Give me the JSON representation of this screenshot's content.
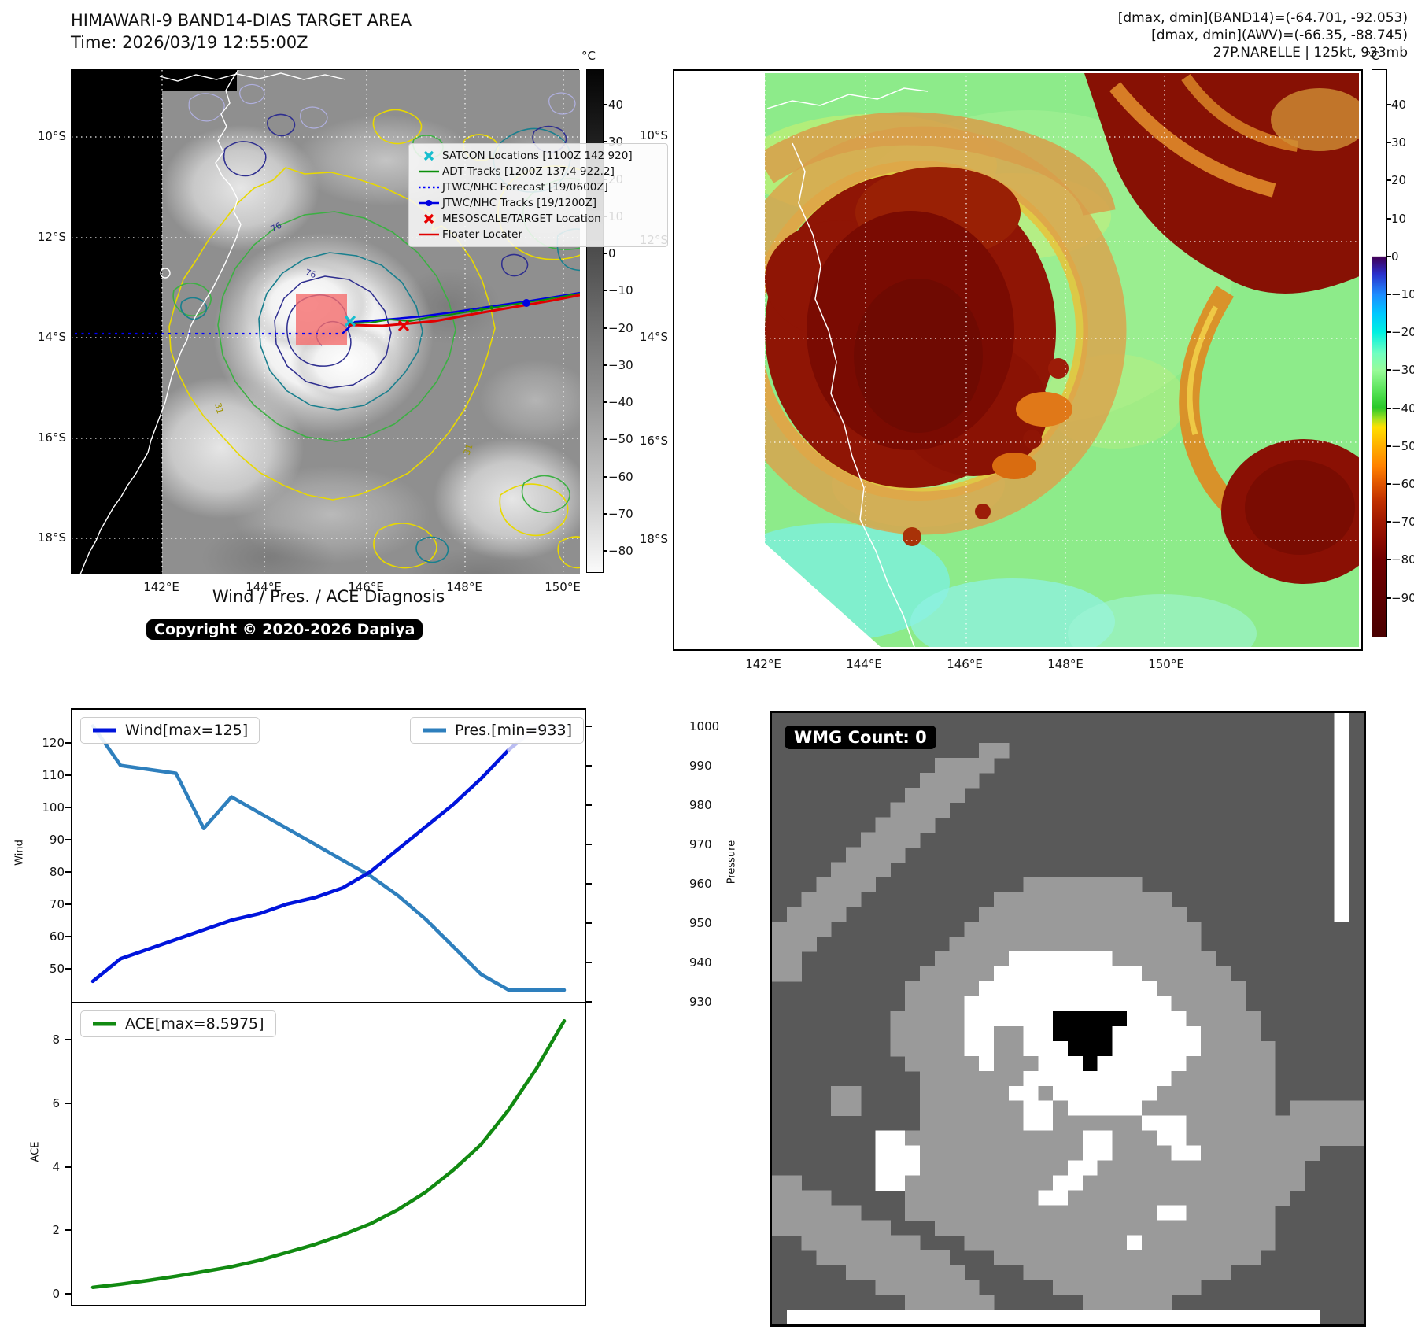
{
  "header": {
    "title": "HIMAWARI-9 BAND14-DIAS TARGET AREA",
    "time_label": "Time: 2026/03/19 12:55:00Z",
    "stats_line1": "[dmax, dmin](BAND14)=(-64.701, -92.053)",
    "stats_line2": "[dmax, dmin](AWV)=(-66.35, -88.745)",
    "stats_line3": "27P.NARELLE | 125kt, 933mb"
  },
  "map_band14": {
    "lat_ticks": [
      "10°S",
      "12°S",
      "14°S",
      "16°S",
      "18°S"
    ],
    "lon_ticks": [
      "142°E",
      "144°E",
      "146°E",
      "148°E",
      "150°E"
    ],
    "colorbar_unit": "°C",
    "colorbar_ticks": [
      "40",
      "30",
      "20",
      "10",
      "0",
      "−10",
      "−20",
      "−30",
      "−40",
      "−50",
      "−60",
      "−70",
      "−80"
    ],
    "legend": [
      {
        "marker": "satcon",
        "label": "SATCON Locations [1100Z 142 920]"
      },
      {
        "marker": "adt",
        "label": "ADT Tracks [1200Z 137.4 922.2]"
      },
      {
        "marker": "fcst",
        "label": "JTWC/NHC Forecast [19/0600Z]"
      },
      {
        "marker": "jtwc",
        "label": "JTWC/NHC Tracks [19/1200Z]"
      },
      {
        "marker": "meso",
        "label": "MESOSCALE/TARGET Location"
      },
      {
        "marker": "floater",
        "label": "Floater Locater"
      }
    ],
    "contour_labels": [
      {
        "text": "-76"
      },
      {
        "text": "76"
      },
      {
        "text": "31"
      },
      {
        "text": "31"
      }
    ],
    "copyright": "Copyright © 2020-2026 Dapiya"
  },
  "map_awv": {
    "lat_ticks": [
      "10°S",
      "12°S",
      "14°S",
      "16°S",
      "18°S"
    ],
    "lon_ticks": [
      "142°E",
      "144°E",
      "146°E",
      "148°E",
      "150°E"
    ],
    "colorbar_unit": "°C",
    "colorbar_ticks": [
      "40",
      "30",
      "20",
      "10",
      "0",
      "−10",
      "−20",
      "−30",
      "−40",
      "−50",
      "−60",
      "−70",
      "−80",
      "−90"
    ]
  },
  "diagnosis": {
    "title": "Wind / Pres. / ACE Diagnosis",
    "wind_legend": "Wind[max=125]",
    "pres_legend": "Pres.[min=933]",
    "ace_legend": "ACE[max=8.5975]"
  },
  "chart_data": [
    {
      "type": "line",
      "title": "Wind / Pres. / ACE Diagnosis",
      "x_note": "time steps, no x tick labels shown",
      "series": [
        {
          "name": "Wind[max=125]",
          "yaxis": "left",
          "color": "#0014dc",
          "tail_color": "#babdf2",
          "tail_from_index": 15,
          "values": [
            46,
            53,
            56,
            59,
            62,
            65,
            67,
            70,
            72,
            75,
            80,
            87,
            94,
            101,
            109,
            118,
            125,
            125
          ]
        },
        {
          "name": "Pres.[min=933]",
          "yaxis": "right",
          "color": "#2e7fbd",
          "values": [
            1000,
            990,
            989,
            988,
            974,
            982,
            978,
            974,
            970,
            966,
            962,
            957,
            951,
            944,
            937,
            933,
            933,
            933
          ]
        }
      ],
      "left_axis": {
        "label": "Wind",
        "ticks": [
          50,
          60,
          70,
          80,
          90,
          100,
          110,
          120
        ],
        "lim": [
          40.1,
          130.4
        ]
      },
      "right_axis": {
        "label": "Pressure",
        "ticks": [
          930,
          940,
          950,
          960,
          970,
          980,
          990,
          1000
        ],
        "lim": [
          930.4,
          1004.1
        ]
      }
    },
    {
      "type": "line",
      "series": [
        {
          "name": "ACE[max=8.5975]",
          "yaxis": "left",
          "color": "#118a11",
          "values": [
            0.2,
            0.3,
            0.42,
            0.55,
            0.7,
            0.85,
            1.05,
            1.3,
            1.55,
            1.85,
            2.2,
            2.65,
            3.2,
            3.9,
            4.7,
            5.8,
            7.1,
            8.6
          ]
        }
      ],
      "left_axis": {
        "label": "ACE",
        "ticks": [
          0,
          2,
          4,
          6,
          8
        ],
        "lim": [
          -0.35,
          9.15
        ]
      }
    }
  ],
  "wmg": {
    "count_label": "WMG Count: 0",
    "palette": {
      ".": "#595959",
      "l": "#9a9a9a",
      "w": "#ffffff",
      "b": "#000000"
    },
    "grid_rle": [
      "38. 1w 1.",
      "38. 1w 1.",
      "14. 2l 22. 1w 1.",
      "11. 4l 23. 1w 1.",
      "10. 4l 24. 1w 1.",
      "9. 4l 25. 1w 1.",
      "8. 4l 26. 1w 1.",
      "7. 4l 27. 1w 1.",
      "6. 4l 28. 1w 1.",
      "5. 4l 29. 1w 1.",
      "4. 4l 30. 1w 1.",
      "3. 4l 10. 8l 13. 1w 1.",
      "2. 4l 9. 12l 11. 1w 1.",
      "1. 4l 9. 14l 10. 1w 1.",
      "4l 9. 16l 11.",
      "3l 9. 17l 11.",
      "2l 9. 5l 7w 7l 10.",
      "2l 8. 5l 10w 6l 9.",
      "9. 5l 12w 6l 8.",
      "9. 4l 14w 5l 8.",
      "8. 5l 6w 5b 4w 5l 7.",
      "8. 5l 2w 2l 2w 4b 6w 4l 7.",
      "8. 5l 2w 2l 3w 3b 6w 5l 6.",
      "9. 5l 1w 3l 3w 1b 6w 6l 6.",
      "10. 7l 10w 7l 6.",
      "4. 2l 4. 6l 2w 1l 7w 8l 6.",
      "4. 2l 4. 7l 2w 1l 5w 9l 1. 5l",
      "10. 7l 2w 6l 3w 12l",
      "7. 2w 12l 2w 3l 2w 12l",
      "7. 3w 11l 2w 4l 2w 8l 3.",
      "7. 3w 10l 2w 14l 4.",
      "2l 5. 2w 10l 2w 15l 4.",
      "4l 5. 9l 2w 15l 5.",
      "6l 3. 17l 2w 6l 6.",
      "8l 3. 23l 6.",
      "2. 8l 3. 11l 1w 9l 6.",
      "3. 9l 3. 18l 7.",
      "5. 8l 4. 14l 9.",
      "7. 7l 5. 10l 11.",
      "9. 6l 6. 6l 13.",
      "1. 36w 3."
    ]
  }
}
